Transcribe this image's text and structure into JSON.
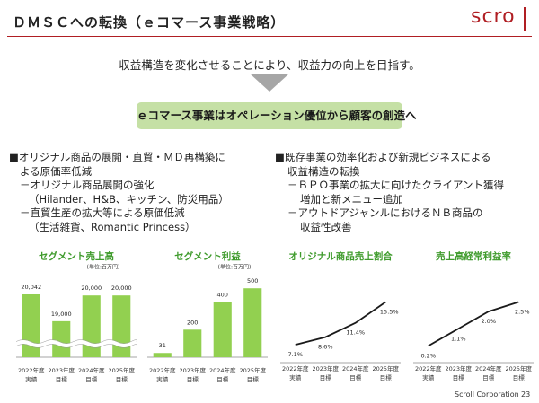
{
  "header": {
    "title": "ＤＭＳＣへの転換（ｅコマース事業戦略）",
    "logo": "scro"
  },
  "lead": "収益構造を変化させることにより、収益力の向上を目指す。",
  "banner": "ｅコマース事業はオペレーション優位から顧客の創造へ",
  "left_points": [
    "■オリジナル商品の展開・直貿・ＭＤ再構築に",
    "よる原価率低減",
    "－オリジナル商品展開の強化",
    "（Hilander、H&B、キッチン、防災用品）",
    "－直貿生産の拡大等による原価低減",
    "（生活雑貨、Romantic Princess）"
  ],
  "right_points": [
    "■既存事業の効率化および新規ビジネスによる",
    "収益構造の転換",
    "－ＢＰＯ事業の拡大に向けたクライアント獲得",
    "増加と新メニュー追加",
    "－アウトドアジャンルにおけるＮＢ商品の",
    "収益性改善"
  ],
  "footer": {
    "company": "Scroll Corporation",
    "page": "23"
  },
  "chart_data": [
    {
      "type": "bar",
      "title": "セグメント売上高",
      "unit": "(単位:百万円)",
      "categories": [
        [
          "2022年度",
          "実績"
        ],
        [
          "2023年度",
          "目標"
        ],
        [
          "2024年度",
          "目標"
        ],
        [
          "2025年度",
          "目標"
        ]
      ],
      "values": [
        20042,
        19000,
        20000,
        20000
      ],
      "value_labels": [
        "20,042",
        "19,000",
        "20,000",
        "20,000"
      ],
      "color": "#92d050",
      "ylim": [
        17600,
        20600
      ],
      "axis_break": true
    },
    {
      "type": "bar",
      "title": "セグメント利益",
      "unit": "(単位:百万円)",
      "categories": [
        [
          "2022年度",
          "実績"
        ],
        [
          "2023年度",
          "目標"
        ],
        [
          "2024年度",
          "目標"
        ],
        [
          "2025年度",
          "目標"
        ]
      ],
      "values": [
        31,
        200,
        400,
        500
      ],
      "color": "#92d050",
      "ylim": [
        0,
        560
      ]
    },
    {
      "type": "line",
      "title": "オリジナル商品売上割合",
      "categories": [
        [
          "2022年度",
          "実績"
        ],
        [
          "2023年度",
          "目標"
        ],
        [
          "2024年度",
          "目標"
        ],
        [
          "2025年度",
          "目標"
        ]
      ],
      "values": [
        7.1,
        8.6,
        11.4,
        15.5
      ],
      "value_labels": [
        "7.1%",
        "8.6%",
        "11.4%",
        "15.5%"
      ],
      "color": "#1a1a1a",
      "ylim": [
        5,
        17
      ]
    },
    {
      "type": "line",
      "title": "売上高経常利益率",
      "categories": [
        [
          "2022年度",
          "実績"
        ],
        [
          "2023年度",
          "目標"
        ],
        [
          "2024年度",
          "目標"
        ],
        [
          "2025年度",
          "目標"
        ]
      ],
      "values": [
        0.2,
        1.1,
        2.0,
        2.5
      ],
      "value_labels": [
        "0.2%",
        "1.1%",
        "2.0%",
        "2.5%"
      ],
      "color": "#1a1a1a",
      "ylim": [
        -0.3,
        2.9
      ]
    }
  ]
}
